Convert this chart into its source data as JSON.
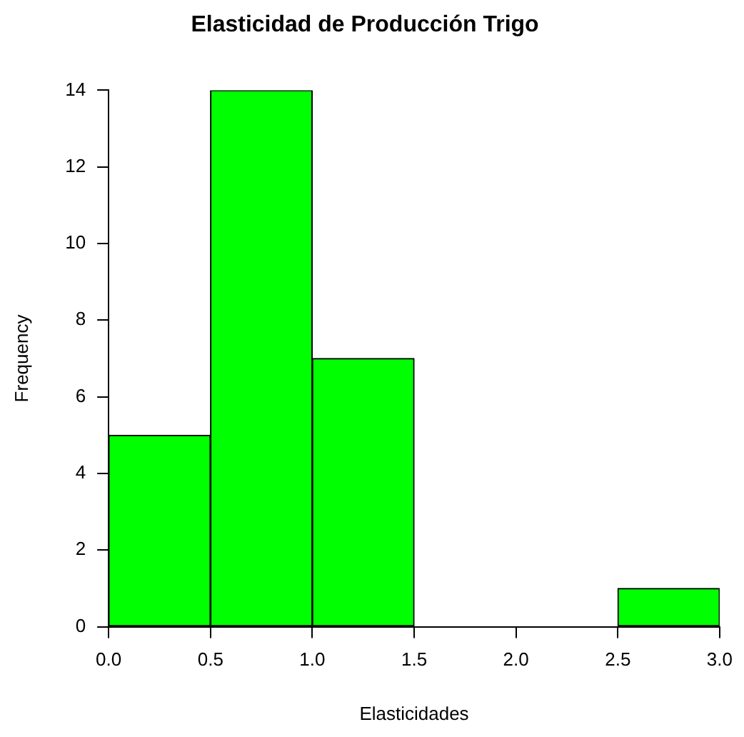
{
  "chart_data": {
    "type": "histogram",
    "title": "Elasticidad de Producción Trigo",
    "xlabel": "Elasticidades",
    "ylabel": "Frequency",
    "bins": [
      0,
      0.5,
      1.0,
      1.5,
      2.0,
      2.5,
      3.0
    ],
    "values": [
      5,
      14,
      7,
      0,
      0,
      1
    ],
    "color": "#00ff00",
    "xlim": [
      0,
      3
    ],
    "ylim": [
      0,
      14
    ],
    "xticks": [
      {
        "value": 0,
        "label": "0.0"
      },
      {
        "value": 0.5,
        "label": "0.5"
      },
      {
        "value": 1,
        "label": "1.0"
      },
      {
        "value": 1.5,
        "label": "1.5"
      },
      {
        "value": 2,
        "label": "2.0"
      },
      {
        "value": 2.5,
        "label": "2.5"
      },
      {
        "value": 3,
        "label": "3.0"
      }
    ],
    "yticks": [
      0,
      2,
      4,
      6,
      8,
      10,
      12,
      14
    ]
  }
}
